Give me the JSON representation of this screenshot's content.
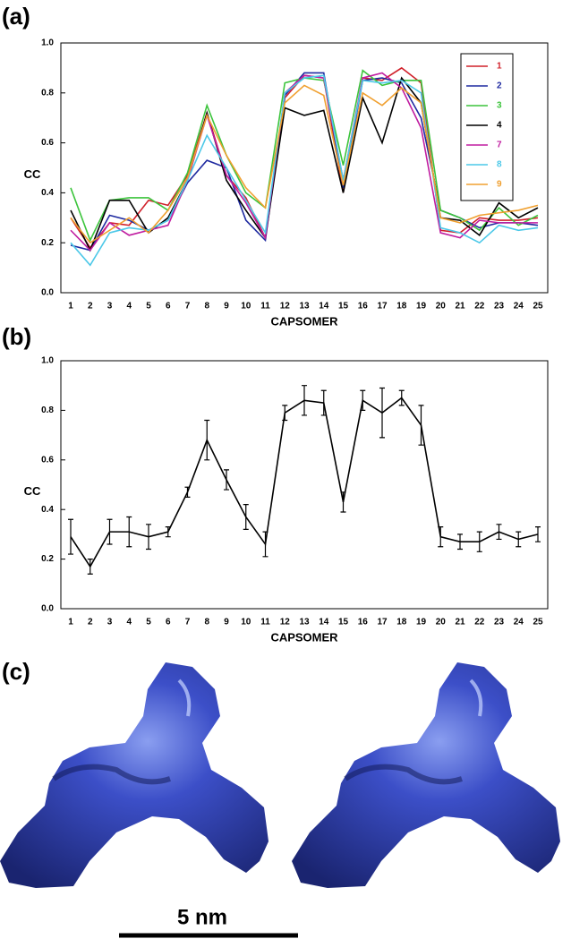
{
  "panel_labels": [
    "(a)",
    "(b)",
    "(c)"
  ],
  "scale_bar_label": "5 nm",
  "chart_data": [
    {
      "type": "line",
      "x_label": "CAPSOMER",
      "y_label": "CC",
      "categories": [
        "1",
        "2",
        "3",
        "4",
        "5",
        "6",
        "7",
        "8",
        "9",
        "10",
        "11",
        "12",
        "13",
        "14",
        "15",
        "16",
        "17",
        "18",
        "19",
        "20",
        "21",
        "22",
        "23",
        "24",
        "25"
      ],
      "ylim": [
        0,
        1
      ],
      "yticks": [
        {
          "value": 0,
          "label": "0.0"
        },
        {
          "value": 0.2,
          "label": "0.2"
        },
        {
          "value": 0.4,
          "label": "0.4"
        },
        {
          "value": 0.6,
          "label": "0.6"
        },
        {
          "value": 0.8,
          "label": "0.8"
        },
        {
          "value": 1,
          "label": "1.0"
        }
      ],
      "legend": "upper right",
      "series": [
        {
          "name": "1",
          "color": "#d0202a",
          "values": [
            0.3,
            0.18,
            0.28,
            0.27,
            0.37,
            0.35,
            0.47,
            0.72,
            0.47,
            0.38,
            0.22,
            0.78,
            0.87,
            0.86,
            0.4,
            0.86,
            0.85,
            0.9,
            0.84,
            0.25,
            0.24,
            0.3,
            0.29,
            0.29,
            0.3
          ]
        },
        {
          "name": "2",
          "color": "#1f2aa0",
          "values": [
            0.19,
            0.17,
            0.31,
            0.29,
            0.25,
            0.29,
            0.44,
            0.53,
            0.5,
            0.29,
            0.21,
            0.79,
            0.88,
            0.88,
            0.42,
            0.85,
            0.86,
            0.84,
            0.7,
            0.33,
            0.3,
            0.26,
            0.28,
            0.28,
            0.27
          ]
        },
        {
          "name": "3",
          "color": "#3cc43c",
          "values": [
            0.42,
            0.21,
            0.37,
            0.38,
            0.38,
            0.33,
            0.48,
            0.75,
            0.55,
            0.4,
            0.34,
            0.84,
            0.86,
            0.85,
            0.51,
            0.89,
            0.83,
            0.85,
            0.85,
            0.33,
            0.3,
            0.25,
            0.34,
            0.27,
            0.31
          ]
        },
        {
          "name": "4",
          "color": "#000000",
          "values": [
            0.33,
            0.17,
            0.37,
            0.37,
            0.24,
            0.3,
            0.45,
            0.72,
            0.45,
            0.33,
            0.22,
            0.74,
            0.71,
            0.73,
            0.4,
            0.78,
            0.6,
            0.86,
            0.76,
            0.3,
            0.29,
            0.23,
            0.36,
            0.3,
            0.34
          ]
        },
        {
          "name": "7",
          "color": "#c01ca0",
          "values": [
            0.25,
            0.17,
            0.28,
            0.23,
            0.25,
            0.27,
            0.45,
            0.71,
            0.47,
            0.36,
            0.22,
            0.8,
            0.87,
            0.86,
            0.45,
            0.86,
            0.88,
            0.82,
            0.66,
            0.24,
            0.22,
            0.29,
            0.28,
            0.28,
            0.28
          ]
        },
        {
          "name": "8",
          "color": "#4cc8e8",
          "values": [
            0.2,
            0.11,
            0.24,
            0.26,
            0.25,
            0.29,
            0.45,
            0.63,
            0.5,
            0.37,
            0.24,
            0.8,
            0.86,
            0.87,
            0.45,
            0.85,
            0.84,
            0.85,
            0.8,
            0.26,
            0.24,
            0.2,
            0.27,
            0.25,
            0.26
          ]
        },
        {
          "name": "9",
          "color": "#f0a030",
          "values": [
            0.3,
            0.2,
            0.25,
            0.3,
            0.24,
            0.33,
            0.46,
            0.71,
            0.55,
            0.42,
            0.34,
            0.76,
            0.83,
            0.79,
            0.43,
            0.8,
            0.75,
            0.82,
            0.76,
            0.3,
            0.28,
            0.31,
            0.32,
            0.33,
            0.35
          ]
        }
      ]
    },
    {
      "type": "line",
      "x_label": "CAPSOMER",
      "y_label": "CC",
      "categories": [
        "1",
        "2",
        "3",
        "4",
        "5",
        "6",
        "7",
        "8",
        "9",
        "10",
        "11",
        "12",
        "13",
        "14",
        "15",
        "16",
        "17",
        "18",
        "19",
        "20",
        "21",
        "22",
        "23",
        "24",
        "25"
      ],
      "ylim": [
        0,
        1
      ],
      "yticks": [
        {
          "value": 0,
          "label": "0.0"
        },
        {
          "value": 0.2,
          "label": "0.2"
        },
        {
          "value": 0.4,
          "label": "0.4"
        },
        {
          "value": 0.6,
          "label": "0.6"
        },
        {
          "value": 0.8,
          "label": "0.8"
        },
        {
          "value": 1,
          "label": "1.0"
        }
      ],
      "color": "#000000",
      "values": [
        0.29,
        0.17,
        0.31,
        0.31,
        0.29,
        0.31,
        0.47,
        0.68,
        0.52,
        0.37,
        0.26,
        0.79,
        0.84,
        0.83,
        0.43,
        0.84,
        0.79,
        0.85,
        0.74,
        0.29,
        0.27,
        0.27,
        0.31,
        0.28,
        0.3
      ],
      "errors": [
        0.07,
        0.03,
        0.05,
        0.06,
        0.05,
        0.02,
        0.02,
        0.08,
        0.04,
        0.05,
        0.05,
        0.03,
        0.06,
        0.05,
        0.04,
        0.04,
        0.1,
        0.03,
        0.08,
        0.04,
        0.03,
        0.04,
        0.03,
        0.03,
        0.03
      ]
    }
  ]
}
